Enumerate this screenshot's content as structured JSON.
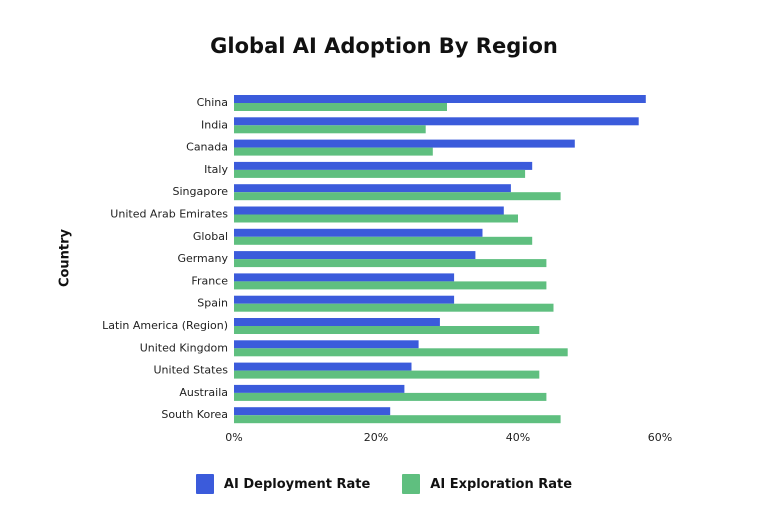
{
  "chart_data": {
    "type": "bar",
    "orientation": "horizontal",
    "title": "Global AI Adoption By Region",
    "xlabel": "",
    "ylabel": "Country",
    "xlim": [
      0,
      60
    ],
    "xticks": [
      "0%",
      "20%",
      "40%",
      "60%"
    ],
    "xtick_values": [
      0,
      20,
      40,
      60
    ],
    "grid": false,
    "legend_position": "bottom",
    "categories": [
      "China",
      "India",
      "Canada",
      "Italy",
      "Singapore",
      "United Arab Emirates",
      "Global",
      "Germany",
      "France",
      "Spain",
      "Latin America (Region)",
      "United Kingdom",
      "United States",
      "Austraila",
      "South Korea"
    ],
    "series": [
      {
        "name": "AI Deployment Rate",
        "color": "#3b5bdb",
        "values": [
          58,
          57,
          48,
          42,
          39,
          38,
          35,
          34,
          31,
          31,
          29,
          26,
          25,
          24,
          22
        ]
      },
      {
        "name": "AI Exploration Rate",
        "color": "#5fbf7f",
        "values": [
          30,
          27,
          28,
          41,
          46,
          40,
          42,
          44,
          44,
          45,
          43,
          47,
          43,
          44,
          46
        ]
      }
    ]
  }
}
